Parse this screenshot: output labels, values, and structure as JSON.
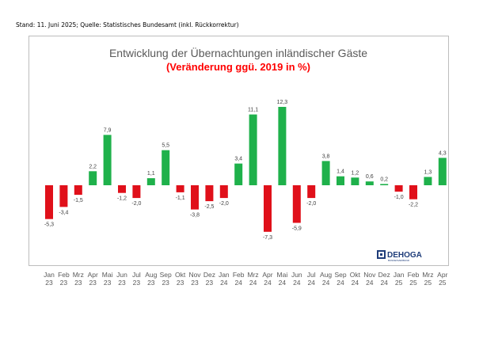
{
  "header": {
    "stand_text": "Stand: 11. Juni 2025; Quelle: Statistisches Bundesamt (inkl. Rückkorrektur)"
  },
  "logo": {
    "text": "DEHOGA",
    "subtext": "BUNDESVERBAND"
  },
  "colors": {
    "positive": "#1fb14b",
    "negative": "#e0101a",
    "title": "#595959",
    "subtitle": "#ff0000",
    "axis": "#595959"
  },
  "chart_data": {
    "type": "bar",
    "title": "Entwicklung der Übernachtungen inländischer Gäste",
    "subtitle": "(Veränderung ggü. 2019 in %)",
    "xlabel": "",
    "ylabel": "",
    "ylim": [
      -8,
      13
    ],
    "grid": false,
    "legend": "none",
    "categories": [
      [
        "Jan",
        "23"
      ],
      [
        "Feb",
        "23"
      ],
      [
        "Mrz",
        "23"
      ],
      [
        "Apr",
        "23"
      ],
      [
        "Mai",
        "23"
      ],
      [
        "Jun",
        "23"
      ],
      [
        "Jul",
        "23"
      ],
      [
        "Aug",
        "23"
      ],
      [
        "Sep",
        "23"
      ],
      [
        "Okt",
        "23"
      ],
      [
        "Nov",
        "23"
      ],
      [
        "Dez",
        "23"
      ],
      [
        "Jan",
        "24"
      ],
      [
        "Feb",
        "24"
      ],
      [
        "Mrz",
        "24"
      ],
      [
        "Apr",
        "24"
      ],
      [
        "Mai",
        "24"
      ],
      [
        "Jun",
        "24"
      ],
      [
        "Jul",
        "24"
      ],
      [
        "Aug",
        "24"
      ],
      [
        "Sep",
        "24"
      ],
      [
        "Okt",
        "24"
      ],
      [
        "Nov",
        "24"
      ],
      [
        "Dez",
        "24"
      ],
      [
        "Jan",
        "25"
      ],
      [
        "Feb",
        "25"
      ],
      [
        "Mrz",
        "25"
      ],
      [
        "Apr",
        "25"
      ]
    ],
    "values": [
      -5.3,
      -3.4,
      -1.5,
      2.2,
      7.9,
      -1.2,
      -2.0,
      1.1,
      5.5,
      -1.1,
      -3.8,
      -2.5,
      -2.0,
      3.4,
      11.1,
      -7.3,
      12.3,
      -5.9,
      -2.0,
      3.8,
      1.4,
      1.2,
      0.6,
      0.2,
      -1.0,
      -2.2,
      1.3,
      4.3
    ],
    "labels": [
      "-5,3",
      "-3,4",
      "-1,5",
      "2,2",
      "7,9",
      "-1,2",
      "-2,0",
      "1,1",
      "5,5",
      "-1,1",
      "-3,8",
      "-2,5",
      "-2,0",
      "3,4",
      "11,1",
      "-7,3",
      "12,3",
      "-5,9",
      "-2,0",
      "3,8",
      "1,4",
      "1,2",
      "0,6",
      "0,2",
      "-1,0",
      "-2,2",
      "1,3",
      "4,3"
    ]
  }
}
